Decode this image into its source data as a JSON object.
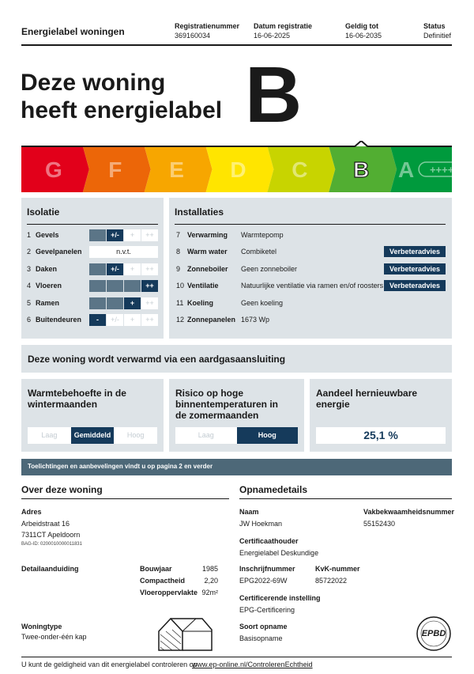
{
  "header": {
    "title": "Energielabel woningen",
    "fields": [
      {
        "label": "Registratienummer",
        "value": "369160034"
      },
      {
        "label": "Datum registratie",
        "value": "16-06-2025"
      },
      {
        "label": "Geldig tot",
        "value": "16-06-2035"
      },
      {
        "label": "Status",
        "value": "Definitief"
      }
    ]
  },
  "headline": {
    "line1": "Deze woning",
    "line2": "heeft energielabel",
    "label": "B"
  },
  "scale": {
    "classes": [
      "G",
      "F",
      "E",
      "D",
      "C",
      "B",
      "A"
    ],
    "colors": [
      "#e2001a",
      "#ec6608",
      "#f7a600",
      "#ffe500",
      "#c8d400",
      "#52ae32",
      "#009a3d"
    ],
    "a_plus": "++++"
  },
  "isolation": {
    "title": "Isolatie",
    "scale": [
      "-",
      "+/-",
      "+",
      "++"
    ],
    "rows": [
      {
        "number": "1",
        "name": "Gevels",
        "rating": "+/-"
      },
      {
        "number": "2",
        "name": "Gevelpanelen",
        "rating": "n.v.t."
      },
      {
        "number": "3",
        "name": "Daken",
        "rating": "+/-"
      },
      {
        "number": "4",
        "name": "Vloeren",
        "rating": "++"
      },
      {
        "number": "5",
        "name": "Ramen",
        "rating": "+"
      },
      {
        "number": "6",
        "name": "Buitendeuren",
        "rating": "-"
      }
    ]
  },
  "installations": {
    "title": "Installaties",
    "rows": [
      {
        "number": "7",
        "name": "Verwarming",
        "value": "Warmtepomp"
      },
      {
        "number": "8",
        "name": "Warm water",
        "value": "Combiketel",
        "button": "Verbeteradvies"
      },
      {
        "number": "9",
        "name": "Zonneboiler",
        "value": "Geen zonneboiler",
        "button": "Verbeteradvies"
      },
      {
        "number": "10",
        "name": "Ventilatie",
        "value": "Natuurlijke ventilatie via ramen en/of roosters",
        "button": "Verbeteradvies"
      },
      {
        "number": "11",
        "name": "Koeling",
        "value": "Geen koeling"
      },
      {
        "number": "12",
        "name": "Zonnepanelen",
        "value": "1673 Wp"
      }
    ]
  },
  "heating_banner": "Deze woning wordt verwarmd via een aardgasaansluiting",
  "indicators": [
    {
      "title": "Warmtebehoefte in de wintermaanden",
      "options": [
        "Laag",
        "Gemiddeld",
        "Hoog"
      ],
      "selected": 1
    },
    {
      "title": "Risico op hoge binnentemperaturen in de zomermaanden",
      "options": [
        "Laag",
        "Hoog"
      ],
      "selected": 1
    },
    {
      "title": "Aandeel hernieuwbare energie",
      "value": "25,1 %"
    }
  ],
  "notice": "Toelichtingen en aanbevelingen vindt u op pagina 2 en verder",
  "about": {
    "title": "Over deze woning",
    "address_label": "Adres",
    "address_lines": [
      "Arbeidstraat 16",
      "7311CT Apeldoorn"
    ],
    "bag_id": "BAG-ID: 0200010000011831",
    "detail_label": "Detailaanduiding",
    "details": [
      {
        "label": "Bouwjaar",
        "value": "1985"
      },
      {
        "label": "Compactheid",
        "value": "2,20"
      },
      {
        "label": "Vloeroppervlakte",
        "value": "92m²"
      }
    ],
    "type_label": "Woningtype",
    "type_value": "Twee-onder-één kap"
  },
  "inspection": {
    "title": "Opnamedetails",
    "fields": [
      {
        "label": "Naam",
        "value": "JW Hoekman"
      },
      {
        "label": "Vakbekwaamheidsnummer",
        "value": "55152430"
      },
      {
        "label": "Certificaathouder",
        "value": "Energielabel Deskundige"
      },
      {
        "label": "Inschrijfnummer",
        "value": "EPG2022-69W"
      },
      {
        "label": "KvK-nummer",
        "value": "85722022"
      },
      {
        "label": "Certificerende instelling",
        "value": "EPG-Certificering"
      },
      {
        "label": "Soort opname",
        "value": "Basisopname"
      }
    ],
    "logo": "EPBD"
  },
  "footer": {
    "text": "U kunt de geldigheid van dit energielabel controleren op",
    "link": "www.ep-online.nl/ControlerenEchtheid"
  }
}
